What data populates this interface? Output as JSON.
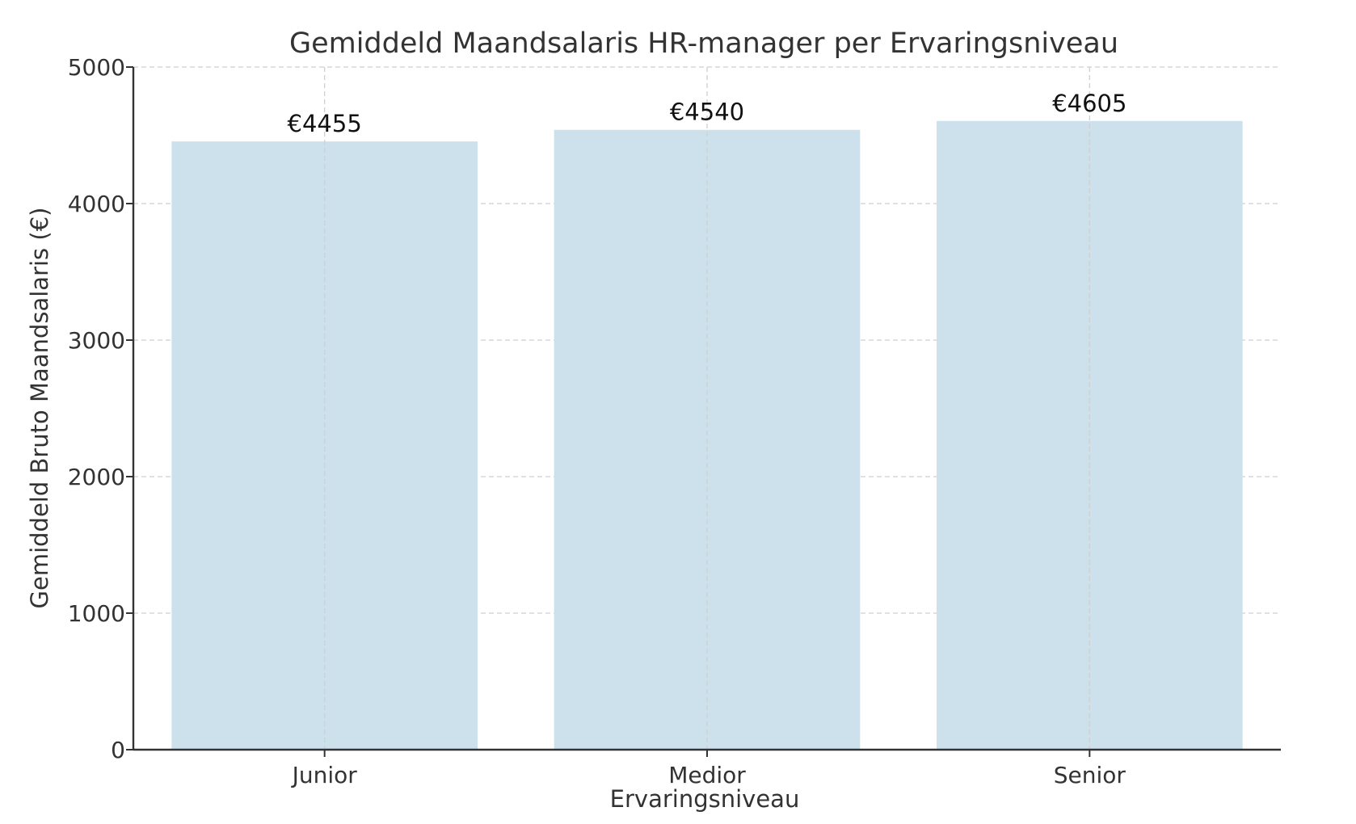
{
  "chart_data": {
    "type": "bar",
    "title": "Gemiddeld Maandsalaris HR-manager per Ervaringsniveau",
    "xlabel": "Ervaringsniveau",
    "ylabel": "Gemiddeld Bruto Maandsalaris (€)",
    "categories": [
      "Junior",
      "Medior",
      "Senior"
    ],
    "values": [
      4455,
      4540,
      4605
    ],
    "data_labels": [
      "€4455",
      "€4540",
      "€4605"
    ],
    "ylim": [
      0,
      5000
    ],
    "yticks": [
      0,
      1000,
      2000,
      3000,
      4000,
      5000
    ],
    "grid": true,
    "bar_color": "#cce1ec"
  }
}
